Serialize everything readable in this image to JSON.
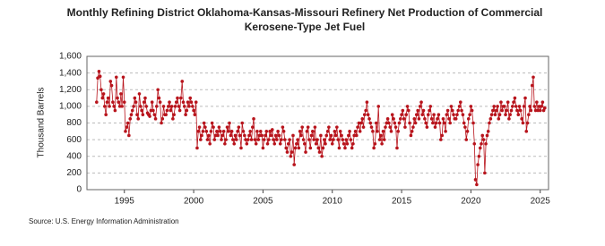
{
  "chart_data": {
    "type": "line",
    "title": [
      "Monthly Refining District Oklahoma-Kansas-Missouri Refinery Net Production of Commercial",
      "Kerosene-Type Jet Fuel"
    ],
    "y_label": "Thousand Barrels",
    "source": "Source: U.S. Energy Information Administration",
    "xlim": [
      1992.3,
      2025.6
    ],
    "xticks": [
      1995,
      2000,
      2005,
      2010,
      2015,
      2020,
      2025
    ],
    "ylim": [
      0,
      1600
    ],
    "yticks": [
      0,
      200,
      400,
      600,
      800,
      {
        "value": 1000,
        "label": "1,000"
      },
      {
        "value": 1200,
        "label": "1,200"
      },
      {
        "value": 1400,
        "label": "1,400"
      },
      {
        "value": 1600,
        "label": "1,600"
      }
    ],
    "grid": true,
    "x": [
      1993.0,
      1993.08,
      1993.17,
      1993.25,
      1993.33,
      1993.42,
      1993.5,
      1993.58,
      1993.67,
      1993.75,
      1993.83,
      1993.92,
      1994.0,
      1994.08,
      1994.17,
      1994.25,
      1994.33,
      1994.42,
      1994.5,
      1994.58,
      1994.67,
      1994.75,
      1994.83,
      1994.92,
      1995.0,
      1995.08,
      1995.17,
      1995.25,
      1995.33,
      1995.42,
      1995.5,
      1995.58,
      1995.67,
      1995.75,
      1995.83,
      1995.92,
      1996.0,
      1996.08,
      1996.17,
      1996.25,
      1996.33,
      1996.42,
      1996.5,
      1996.58,
      1996.67,
      1996.75,
      1996.83,
      1996.92,
      1997.0,
      1997.08,
      1997.17,
      1997.25,
      1997.33,
      1997.42,
      1997.5,
      1997.58,
      1997.67,
      1997.75,
      1997.83,
      1997.92,
      1998.0,
      1998.08,
      1998.17,
      1998.25,
      1998.33,
      1998.42,
      1998.5,
      1998.58,
      1998.67,
      1998.75,
      1998.83,
      1998.92,
      1999.0,
      1999.08,
      1999.17,
      1999.25,
      1999.33,
      1999.42,
      1999.5,
      1999.58,
      1999.67,
      1999.75,
      1999.83,
      1999.92,
      2000.0,
      2000.08,
      2000.17,
      2000.25,
      2000.33,
      2000.42,
      2000.5,
      2000.58,
      2000.67,
      2000.75,
      2000.83,
      2000.92,
      2001.0,
      2001.08,
      2001.17,
      2001.25,
      2001.33,
      2001.42,
      2001.5,
      2001.58,
      2001.67,
      2001.75,
      2001.83,
      2001.92,
      2002.0,
      2002.08,
      2002.17,
      2002.25,
      2002.33,
      2002.42,
      2002.5,
      2002.58,
      2002.67,
      2002.75,
      2002.83,
      2002.92,
      2003.0,
      2003.08,
      2003.17,
      2003.25,
      2003.33,
      2003.42,
      2003.5,
      2003.58,
      2003.67,
      2003.75,
      2003.83,
      2003.92,
      2004.0,
      2004.08,
      2004.17,
      2004.25,
      2004.33,
      2004.42,
      2004.5,
      2004.58,
      2004.67,
      2004.75,
      2004.83,
      2004.92,
      2005.0,
      2005.08,
      2005.17,
      2005.25,
      2005.33,
      2005.42,
      2005.5,
      2005.58,
      2005.67,
      2005.75,
      2005.83,
      2005.92,
      2006.0,
      2006.08,
      2006.17,
      2006.25,
      2006.33,
      2006.42,
      2006.5,
      2006.58,
      2006.67,
      2006.75,
      2006.83,
      2006.92,
      2007.0,
      2007.08,
      2007.17,
      2007.25,
      2007.33,
      2007.42,
      2007.5,
      2007.58,
      2007.67,
      2007.75,
      2007.83,
      2007.92,
      2008.0,
      2008.08,
      2008.17,
      2008.25,
      2008.33,
      2008.42,
      2008.5,
      2008.58,
      2008.67,
      2008.75,
      2008.83,
      2008.92,
      2009.0,
      2009.08,
      2009.17,
      2009.25,
      2009.33,
      2009.42,
      2009.5,
      2009.58,
      2009.67,
      2009.75,
      2009.83,
      2009.92,
      2010.0,
      2010.08,
      2010.17,
      2010.25,
      2010.33,
      2010.42,
      2010.5,
      2010.58,
      2010.67,
      2010.75,
      2010.83,
      2010.92,
      2011.0,
      2011.08,
      2011.17,
      2011.25,
      2011.33,
      2011.42,
      2011.5,
      2011.58,
      2011.67,
      2011.75,
      2011.83,
      2011.92,
      2012.0,
      2012.08,
      2012.17,
      2012.25,
      2012.33,
      2012.42,
      2012.5,
      2012.58,
      2012.67,
      2012.75,
      2012.83,
      2012.92,
      2013.0,
      2013.08,
      2013.17,
      2013.25,
      2013.33,
      2013.42,
      2013.5,
      2013.58,
      2013.67,
      2013.75,
      2013.83,
      2013.92,
      2014.0,
      2014.08,
      2014.17,
      2014.25,
      2014.33,
      2014.42,
      2014.5,
      2014.58,
      2014.67,
      2014.75,
      2014.83,
      2014.92,
      2015.0,
      2015.08,
      2015.17,
      2015.25,
      2015.33,
      2015.42,
      2015.5,
      2015.58,
      2015.67,
      2015.75,
      2015.83,
      2015.92,
      2016.0,
      2016.08,
      2016.17,
      2016.25,
      2016.33,
      2016.42,
      2016.5,
      2016.58,
      2016.67,
      2016.75,
      2016.83,
      2016.92,
      2017.0,
      2017.08,
      2017.17,
      2017.25,
      2017.33,
      2017.42,
      2017.5,
      2017.58,
      2017.67,
      2017.75,
      2017.83,
      2017.92,
      2018.0,
      2018.08,
      2018.17,
      2018.25,
      2018.33,
      2018.42,
      2018.5,
      2018.58,
      2018.67,
      2018.75,
      2018.83,
      2018.92,
      2019.0,
      2019.08,
      2019.17,
      2019.25,
      2019.33,
      2019.42,
      2019.5,
      2019.58,
      2019.67,
      2019.75,
      2019.83,
      2019.92,
      2020.0,
      2020.08,
      2020.17,
      2020.25,
      2020.33,
      2020.42,
      2020.5,
      2020.58,
      2020.67,
      2020.75,
      2020.83,
      2020.92,
      2021.0,
      2021.08,
      2021.17,
      2021.25,
      2021.33,
      2021.42,
      2021.5,
      2021.58,
      2021.67,
      2021.75,
      2021.83,
      2021.92,
      2022.0,
      2022.08,
      2022.17,
      2022.25,
      2022.33,
      2022.42,
      2022.5,
      2022.58,
      2022.67,
      2022.75,
      2022.83,
      2022.92,
      2023.0,
      2023.08,
      2023.17,
      2023.25,
      2023.33,
      2023.42,
      2023.5,
      2023.58,
      2023.67,
      2023.75,
      2023.83,
      2023.92,
      2024.0,
      2024.08,
      2024.17,
      2024.25,
      2024.33,
      2024.42,
      2024.5,
      2024.58,
      2024.67,
      2024.75,
      2024.83,
      2024.92,
      2025.0,
      2025.08,
      2025.17,
      2025.25,
      2025.33
    ],
    "series": [
      {
        "color": "#b8141c",
        "values": [
          1050,
          1340,
          1420,
          1360,
          1200,
          1100,
          1150,
          1000,
          900,
          1050,
          1100,
          1000,
          1300,
          1250,
          1050,
          1000,
          950,
          1350,
          1100,
          1050,
          1000,
          1150,
          1000,
          1350,
          1050,
          700,
          750,
          800,
          650,
          850,
          900,
          950,
          1000,
          1100,
          1050,
          900,
          850,
          1150,
          1000,
          950,
          900,
          1050,
          1100,
          1000,
          920,
          900,
          880,
          950,
          1050,
          950,
          900,
          850,
          1000,
          1200,
          1100,
          1050,
          800,
          850,
          1000,
          900,
          900,
          950,
          1000,
          1050,
          950,
          1000,
          850,
          900,
          1000,
          1050,
          1100,
          1000,
          950,
          1100,
          1300,
          1050,
          1000,
          900,
          950,
          1050,
          1000,
          1100,
          1050,
          1000,
          950,
          900,
          1050,
          500,
          700,
          750,
          600,
          650,
          700,
          800,
          750,
          700,
          600,
          650,
          550,
          700,
          800,
          750,
          600,
          650,
          700,
          650,
          750,
          700,
          600,
          650,
          700,
          550,
          600,
          750,
          700,
          800,
          650,
          700,
          600,
          550,
          650,
          600,
          700,
          750,
          650,
          500,
          800,
          700,
          650,
          600,
          550,
          600,
          650,
          700,
          600,
          750,
          850,
          600,
          550,
          700,
          600,
          650,
          700,
          650,
          500,
          600,
          650,
          700,
          550,
          600,
          700,
          650,
          720,
          600,
          550,
          650,
          600,
          700,
          650,
          550,
          600,
          750,
          700,
          600,
          500,
          450,
          550,
          600,
          400,
          450,
          650,
          300,
          500,
          550,
          600,
          500,
          700,
          650,
          750,
          600,
          550,
          450,
          700,
          750,
          600,
          500,
          650,
          700,
          600,
          750,
          550,
          600,
          500,
          450,
          650,
          400,
          500,
          600,
          550,
          650,
          700,
          750,
          600,
          650,
          550,
          600,
          700,
          650,
          750,
          600,
          500,
          700,
          650,
          600,
          550,
          500,
          600,
          550,
          650,
          700,
          600,
          500,
          550,
          650,
          700,
          650,
          750,
          800,
          700,
          800,
          850,
          750,
          900,
          950,
          1050,
          900,
          850,
          800,
          750,
          700,
          500,
          550,
          800,
          700,
          1000,
          600,
          650,
          550,
          700,
          600,
          750,
          800,
          850,
          800,
          750,
          700,
          900,
          850,
          800,
          750,
          500,
          700,
          800,
          850,
          900,
          950,
          850,
          750,
          900,
          1000,
          950,
          800,
          650,
          700,
          750,
          850,
          800,
          900,
          950,
          850,
          1000,
          1050,
          900,
          950,
          850,
          800,
          750,
          900,
          950,
          1000,
          850,
          800,
          900,
          750,
          800,
          850,
          900,
          800,
          600,
          650,
          850,
          800,
          700,
          900,
          950,
          850,
          800,
          1000,
          950,
          900,
          850,
          850,
          900,
          950,
          1000,
          1050,
          950,
          900,
          800,
          750,
          600,
          700,
          850,
          900,
          1000,
          950,
          800,
          550,
          120,
          60,
          300,
          400,
          500,
          550,
          650,
          600,
          200,
          550,
          650,
          700,
          800,
          850,
          900,
          950,
          1000,
          900,
          950,
          1000,
          850,
          900,
          1050,
          950,
          1000,
          1000,
          900,
          950,
          1050,
          850,
          900,
          950,
          1000,
          1050,
          1100,
          1000,
          950,
          900,
          1000,
          950,
          850,
          800,
          1000,
          1100,
          700,
          800,
          900,
          1000,
          950,
          1250,
          1350,
          1000,
          950,
          1050,
          950,
          1000,
          950,
          1000,
          1050,
          950,
          980
        ]
      }
    ]
  }
}
